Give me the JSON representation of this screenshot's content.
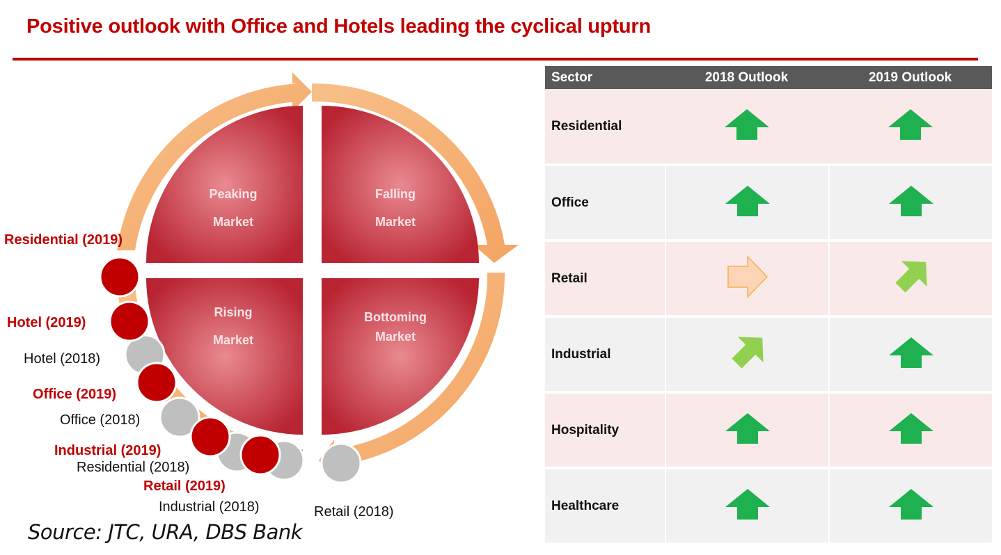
{
  "title": "Positive outlook with Office and Hotels leading the cyclical upturn",
  "cycle": {
    "quadrants": [
      {
        "label_line1": "Peaking",
        "label_line2": "Market"
      },
      {
        "label_line1": "Falling",
        "label_line2": "Market"
      },
      {
        "label_line1": "Rising",
        "label_line2": "Market"
      },
      {
        "label_line1": "Bottoming",
        "label_line2": "Market"
      }
    ],
    "markers": [
      {
        "label": "Residential (2019)",
        "year": "2019"
      },
      {
        "label": "Hotel (2019)",
        "year": "2019"
      },
      {
        "label": "Hotel (2018)",
        "year": "2018"
      },
      {
        "label": "Office  (2019)",
        "year": "2019"
      },
      {
        "label": "Office (2018)",
        "year": "2018"
      },
      {
        "label": "Industrial  (2019)",
        "year": "2019"
      },
      {
        "label": "Residential (2018)",
        "year": "2018"
      },
      {
        "label": "Retail  (2019)",
        "year": "2019"
      },
      {
        "label": "Industrial  (2018)",
        "year": "2018"
      },
      {
        "label": "Retail  (2018)",
        "year": "2018"
      }
    ],
    "colors": {
      "marker_2019": "#c00000",
      "marker_2018": "#bfbfbf",
      "ring": "#f7b27a",
      "quadrant": "#c0313c"
    }
  },
  "source": "Source: JTC, URA, DBS Bank",
  "table": {
    "headers": [
      "Sector",
      "2018 Outlook",
      "2019 Outlook"
    ],
    "rows": [
      {
        "sector": "Residential",
        "o2018": "up-arrow-icon",
        "o2019": "up-arrow-icon"
      },
      {
        "sector": "Office",
        "o2018": "up-arrow-icon",
        "o2019": "up-arrow-icon"
      },
      {
        "sector": "Retail",
        "o2018": "right-arrow-icon",
        "o2019": "up-right-arrow-icon"
      },
      {
        "sector": "Industrial",
        "o2018": "up-right-arrow-icon",
        "o2019": "up-arrow-icon"
      },
      {
        "sector": "Hospitality",
        "o2018": "up-arrow-icon",
        "o2019": "up-arrow-icon"
      },
      {
        "sector": "Healthcare",
        "o2018": "up-arrow-icon",
        "o2019": "up-arrow-icon"
      }
    ],
    "colors": {
      "header": "#595959",
      "pink_row": "#f9e9e9",
      "gray_row": "#f1f1f1",
      "up": "#1fb050",
      "up_right": "#92d050",
      "neutral": "#fbd5b5"
    }
  }
}
